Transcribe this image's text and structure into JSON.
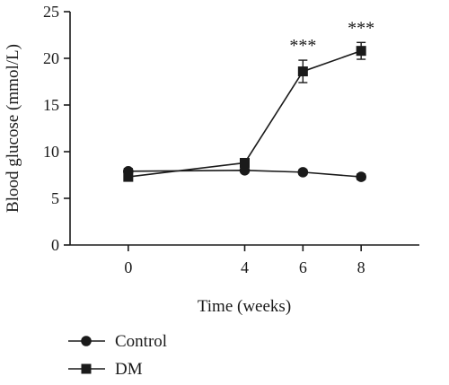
{
  "chart_data": {
    "type": "line",
    "title": "",
    "xlabel": "Time (weeks)",
    "ylabel": "Blood glucose (mmol/L)",
    "x": [
      0,
      4,
      6,
      8
    ],
    "xlim": [
      -2,
      10
    ],
    "ylim": [
      0,
      25
    ],
    "yticks": [
      0,
      5,
      10,
      15,
      20,
      25
    ],
    "xticks": [
      0,
      4,
      6,
      8
    ],
    "grid": false,
    "legend_position": "bottom-left",
    "series": [
      {
        "name": "Control",
        "marker": "circle",
        "color": "#1a1a1a",
        "values": [
          7.9,
          8.0,
          7.8,
          7.3
        ],
        "error": [
          0.3,
          0.25,
          0.25,
          0.3
        ]
      },
      {
        "name": "DM",
        "marker": "square",
        "color": "#1a1a1a",
        "values": [
          7.3,
          8.8,
          18.6,
          20.8
        ],
        "error": [
          0.45,
          0.4,
          1.2,
          0.9
        ]
      }
    ],
    "annotations": [
      {
        "x": 6,
        "series": "DM",
        "text": "***"
      },
      {
        "x": 8,
        "series": "DM",
        "text": "***"
      }
    ]
  }
}
